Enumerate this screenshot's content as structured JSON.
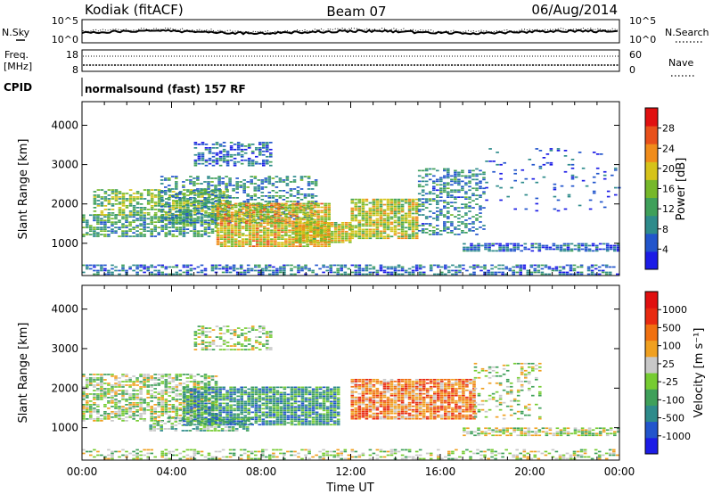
{
  "header": {
    "station": "Kodiak (fitACF)",
    "beam": "Beam 07",
    "date": "06/Aug/2014"
  },
  "noise_panel": {
    "left_label": "N.Sky",
    "right_label": "N.Search",
    "left_ticks": [
      "10^5",
      "10^0"
    ],
    "right_ticks": [
      "10^5",
      "10^0"
    ]
  },
  "freq_panel": {
    "left_label_line1": "Freq.",
    "left_label_line2": "[MHz]",
    "left_ticks": [
      "18",
      "8"
    ],
    "right_label": "Nave",
    "right_ticks": [
      "60",
      "0"
    ]
  },
  "cpid_panel": {
    "label": "CPID",
    "text": "normalsound (fast) 157 RF"
  },
  "chart_data": [
    {
      "type": "heatmap",
      "name": "power",
      "xlabel": "Time UT",
      "ylabel": "Slant Range [km]",
      "x_ticks": [
        "00:00",
        "04:00",
        "08:00",
        "12:00",
        "16:00",
        "20:00",
        "00:00"
      ],
      "xlim_hours": [
        0,
        24
      ],
      "ylim_km": [
        180,
        4600
      ],
      "y_ticks": [
        1000,
        2000,
        3000,
        4000
      ],
      "colorbar_label": "Power [dB]",
      "colorbar_ticks": [
        "4",
        "8",
        "12",
        "16",
        "20",
        "24",
        "28"
      ],
      "colorbar_range": [
        0,
        32
      ],
      "colorscale": [
        "#1c1ce6",
        "#2255cc",
        "#2e8b8b",
        "#3fa05a",
        "#76b82a",
        "#d6c31a",
        "#f08c1a",
        "#e8501a",
        "#e01010"
      ],
      "regions": [
        {
          "t0": 0.0,
          "t1": 24.0,
          "r0": 190,
          "r1": 420,
          "level": 0.22,
          "density": 0.55
        },
        {
          "t0": 0.0,
          "t1": 6.0,
          "r0": 1150,
          "r1": 1700,
          "level": 0.35,
          "density": 0.7
        },
        {
          "t0": 0.5,
          "t1": 6.5,
          "r0": 1700,
          "r1": 2350,
          "level": 0.45,
          "density": 0.65
        },
        {
          "t0": 3.5,
          "t1": 10.5,
          "r0": 1500,
          "r1": 2700,
          "level": 0.3,
          "density": 0.45
        },
        {
          "t0": 5.0,
          "t1": 8.5,
          "r0": 2950,
          "r1": 3550,
          "level": 0.2,
          "density": 0.55
        },
        {
          "t0": 6.0,
          "t1": 11.0,
          "r0": 900,
          "r1": 2000,
          "level": 0.62,
          "density": 0.88
        },
        {
          "t0": 9.5,
          "t1": 12.0,
          "r0": 1000,
          "r1": 1500,
          "level": 0.6,
          "density": 0.85
        },
        {
          "t0": 12.0,
          "t1": 15.0,
          "r0": 1100,
          "r1": 2100,
          "level": 0.55,
          "density": 0.82
        },
        {
          "t0": 15.0,
          "t1": 18.0,
          "r0": 1200,
          "r1": 2900,
          "level": 0.28,
          "density": 0.45
        },
        {
          "t0": 17.0,
          "t1": 24.0,
          "r0": 780,
          "r1": 1000,
          "level": 0.2,
          "density": 0.7
        },
        {
          "t0": 18.0,
          "t1": 24.0,
          "r0": 1800,
          "r1": 3400,
          "level": 0.15,
          "density": 0.08
        }
      ]
    },
    {
      "type": "heatmap",
      "name": "velocity",
      "xlabel": "Time UT",
      "ylabel": "Slant Range [km]",
      "x_ticks": [
        "00:00",
        "04:00",
        "08:00",
        "12:00",
        "16:00",
        "20:00",
        "00:00"
      ],
      "xlim_hours": [
        0,
        24
      ],
      "ylim_km": [
        180,
        4600
      ],
      "y_ticks": [
        1000,
        2000,
        3000,
        4000
      ],
      "colorbar_label": "Velocity [m s⁻¹]",
      "colorbar_ticks": [
        "1000",
        "500",
        "100",
        "25",
        "-25",
        "-100",
        "-500",
        "-1000"
      ],
      "colorscale": [
        "#1c1ce6",
        "#2255cc",
        "#2e8b8b",
        "#3fa05a",
        "#76cc32",
        "#c8c8c8",
        "#f0a020",
        "#f07010",
        "#e82a10",
        "#e01010"
      ],
      "regions": [
        {
          "t0": 0.0,
          "t1": 24.0,
          "r0": 190,
          "r1": 420,
          "level": 0.5,
          "density": 0.4
        },
        {
          "t0": 0.0,
          "t1": 6.0,
          "r0": 1150,
          "r1": 2350,
          "level": 0.48,
          "density": 0.65
        },
        {
          "t0": 3.0,
          "t1": 7.5,
          "r0": 900,
          "r1": 1250,
          "level": 0.4,
          "density": 0.55
        },
        {
          "t0": 5.0,
          "t1": 8.5,
          "r0": 2950,
          "r1": 3550,
          "level": 0.5,
          "density": 0.45
        },
        {
          "t0": 4.5,
          "t1": 11.5,
          "r0": 1050,
          "r1": 2000,
          "level": 0.3,
          "density": 0.85
        },
        {
          "t0": 12.0,
          "t1": 17.5,
          "r0": 1200,
          "r1": 2200,
          "level": 0.72,
          "density": 0.85
        },
        {
          "t0": 17.0,
          "t1": 24.0,
          "r0": 780,
          "r1": 1000,
          "level": 0.5,
          "density": 0.7
        },
        {
          "t0": 17.5,
          "t1": 20.5,
          "r0": 1200,
          "r1": 2600,
          "level": 0.5,
          "density": 0.25
        }
      ]
    }
  ]
}
